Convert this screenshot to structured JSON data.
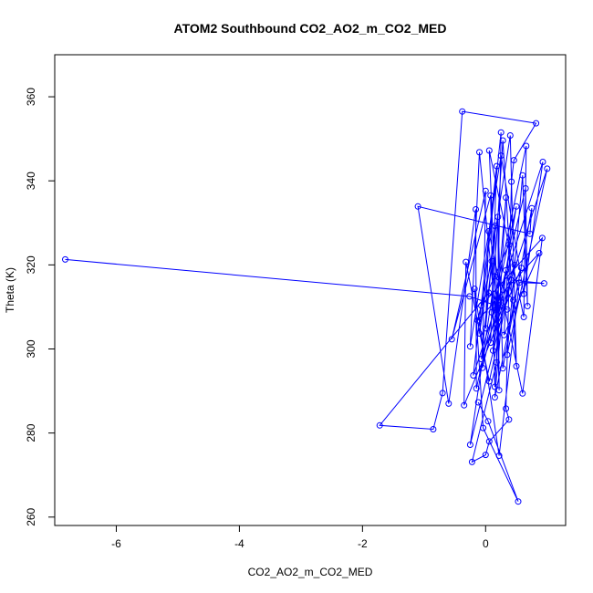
{
  "chart_data": {
    "type": "line",
    "title": "ATOM2 Southbound CO2_AO2_m_CO2_MED",
    "xlabel": "CO2_AO2_m_CO2_MED",
    "ylabel": "Theta (K)",
    "xlim": [
      -7,
      1.3
    ],
    "ylim": [
      258,
      370
    ],
    "xticks": [
      -6,
      -4,
      -2,
      0
    ],
    "yticks": [
      260,
      280,
      300,
      320,
      340,
      360
    ],
    "series_color": "#0000ff",
    "markers": "open-circle",
    "points": [
      [
        -0.38,
        356.5
      ],
      [
        0.82,
        353.7
      ],
      [
        0.25,
        351.5
      ],
      [
        0.4,
        350.8
      ],
      [
        0.28,
        349.6
      ],
      [
        0.66,
        348.3
      ],
      [
        0.06,
        347.2
      ],
      [
        -0.1,
        346.8
      ],
      [
        0.25,
        346.0
      ],
      [
        0.46,
        344.9
      ],
      [
        0.93,
        344.5
      ],
      [
        0.18,
        343.5
      ],
      [
        1.0,
        342.9
      ],
      [
        0.6,
        341.3
      ],
      [
        0.42,
        339.8
      ],
      [
        0.65,
        338.2
      ],
      [
        0.0,
        337.6
      ],
      [
        0.08,
        336.5
      ],
      [
        0.33,
        336.0
      ],
      [
        0.5,
        333.9
      ],
      [
        -0.16,
        333.2
      ],
      [
        -1.1,
        333.9
      ],
      [
        0.75,
        333.5
      ],
      [
        0.2,
        331.4
      ],
      [
        0.15,
        329.3
      ],
      [
        0.05,
        328.0
      ],
      [
        0.72,
        327.4
      ],
      [
        0.92,
        326.4
      ],
      [
        0.38,
        324.8
      ],
      [
        0.87,
        322.8
      ],
      [
        0.1,
        320.9
      ],
      [
        0.47,
        320.0
      ],
      [
        -0.32,
        320.7
      ],
      [
        0.58,
        319.3
      ],
      [
        0.33,
        318.7
      ],
      [
        0.15,
        317.3
      ],
      [
        0.41,
        316.4
      ],
      [
        -6.83,
        321.3
      ],
      [
        0.55,
        315.8
      ],
      [
        0.95,
        315.6
      ],
      [
        -0.18,
        314.3
      ],
      [
        0.05,
        313.4
      ],
      [
        0.62,
        313.1
      ],
      [
        -0.26,
        312.5
      ],
      [
        0.45,
        311.6
      ],
      [
        0.22,
        311.0
      ],
      [
        -0.07,
        310.3
      ],
      [
        0.68,
        310.2
      ],
      [
        0.35,
        309.4
      ],
      [
        0.1,
        308.7
      ],
      [
        0.62,
        307.6
      ],
      [
        -0.13,
        306.8
      ],
      [
        0.18,
        305.8
      ],
      [
        0.0,
        304.9
      ],
      [
        -0.1,
        303.7
      ],
      [
        0.3,
        303.3
      ],
      [
        -0.55,
        302.3
      ],
      [
        0.08,
        301.5
      ],
      [
        -0.25,
        300.6
      ],
      [
        0.12,
        299.6
      ],
      [
        0.35,
        298.6
      ],
      [
        -0.07,
        297.6
      ],
      [
        0.18,
        296.8
      ],
      [
        -0.05,
        295.5
      ],
      [
        0.28,
        295.4
      ],
      [
        0.5,
        295.9
      ],
      [
        -0.2,
        293.7
      ],
      [
        0.06,
        292.3
      ],
      [
        0.15,
        291.0
      ],
      [
        -0.15,
        290.6
      ],
      [
        0.22,
        290.2
      ],
      [
        -0.7,
        289.5
      ],
      [
        0.6,
        289.4
      ],
      [
        0.15,
        288.5
      ],
      [
        -0.12,
        287.3
      ],
      [
        -0.6,
        287.0
      ],
      [
        -0.35,
        286.6
      ],
      [
        0.33,
        285.8
      ],
      [
        0.04,
        282.8
      ],
      [
        0.38,
        283.2
      ],
      [
        -1.72,
        281.8
      ],
      [
        -0.04,
        281.2
      ],
      [
        -0.85,
        280.9
      ],
      [
        0.06,
        278.0
      ],
      [
        -0.25,
        277.2
      ],
      [
        0.0,
        274.8
      ],
      [
        0.22,
        274.6
      ],
      [
        -0.22,
        273.1
      ],
      [
        0.53,
        263.7
      ]
    ],
    "path_order": [
      37,
      43,
      48,
      45,
      41,
      80,
      82,
      71,
      0,
      1,
      9,
      14,
      77,
      79,
      83,
      85,
      87,
      62,
      2,
      54,
      3,
      65,
      4,
      49,
      5,
      50,
      6,
      52,
      7,
      58,
      8,
      42,
      10,
      66,
      11,
      57,
      12,
      60,
      13,
      47,
      15,
      63,
      16,
      56,
      17,
      68,
      18,
      59,
      19,
      69,
      20,
      75,
      21,
      26,
      22,
      64,
      23,
      70,
      24,
      53,
      25,
      72,
      27,
      46,
      28,
      55,
      29,
      51,
      30,
      61,
      31,
      67,
      32,
      76,
      33,
      73,
      34,
      44,
      35,
      84,
      36,
      39,
      38,
      86,
      40,
      81,
      88,
      78,
      74
    ]
  }
}
